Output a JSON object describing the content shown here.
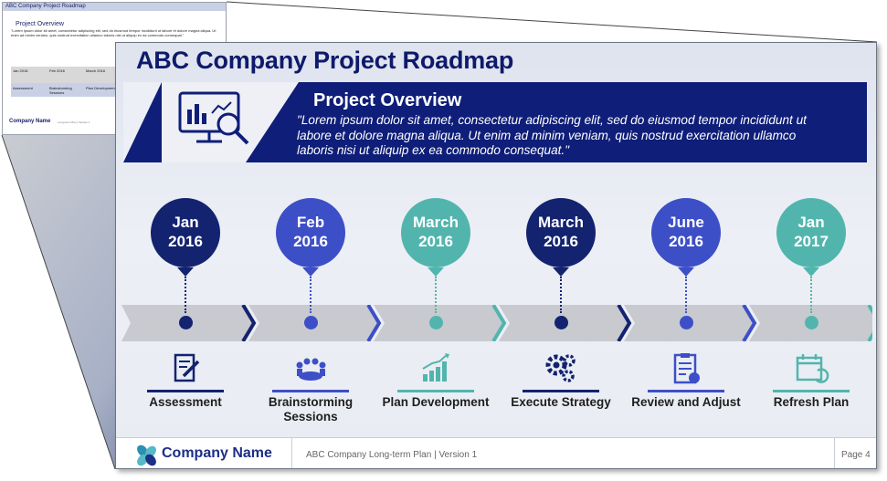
{
  "thumbnail": {
    "title": "ABC Company Project Roadmap",
    "subtitle": "Project Overview",
    "body": "\"Lorem ipsum dolor sit amet, consectetur adipiscing elit, sed do eiusmod tempor incididunt ut labore et dolore magna aliqua. Ut enim ad minim veniam, quis nostrud exercitation ullamco laboris nisi ut aliquip ex ea commodo consequat.\"",
    "dates": [
      "Jan 2016",
      "Feb 2016",
      "March 2016"
    ],
    "steps": [
      "Assessment",
      "Brainstorming Sessions",
      "Plan Development"
    ],
    "company": "Company Name",
    "footer": "Long-term Plan | Version 1"
  },
  "slide": {
    "title": "ABC Company Project Roadmap",
    "overview_title": "Project Overview",
    "overview_text": "\"Lorem ipsum dolor sit amet, consectetur adipiscing elit, sed do eiusmod tempor incididunt ut labore et dolore magna aliqua. Ut enim ad minim veniam, quis nostrud exercitation ullamco laboris nisi ut aliquip ex ea commodo consequat.\"",
    "milestones": [
      {
        "month": "Jan",
        "year": "2016",
        "label": "Assessment",
        "color": "#13236f",
        "icon": "document-pen-icon"
      },
      {
        "month": "Feb",
        "year": "2016",
        "label": "Brainstorming Sessions",
        "color": "#3d4fc7",
        "icon": "meeting-icon"
      },
      {
        "month": "March",
        "year": "2016",
        "label": "Plan Development",
        "color": "#52b5ad",
        "icon": "growth-chart-icon"
      },
      {
        "month": "March",
        "year": "2016",
        "label": "Execute Strategy",
        "color": "#13236f",
        "icon": "gears-icon"
      },
      {
        "month": "June",
        "year": "2016",
        "label": "Review and Adjust",
        "color": "#3d4fc7",
        "icon": "checklist-icon"
      },
      {
        "month": "Jan",
        "year": "2017",
        "label": "Refresh Plan",
        "color": "#52b5ad",
        "icon": "calendar-refresh-icon"
      }
    ]
  },
  "footer": {
    "company": "Company Name",
    "plan_text": "ABC Company Long-term Plan | Version 1",
    "page": "Page 4"
  }
}
